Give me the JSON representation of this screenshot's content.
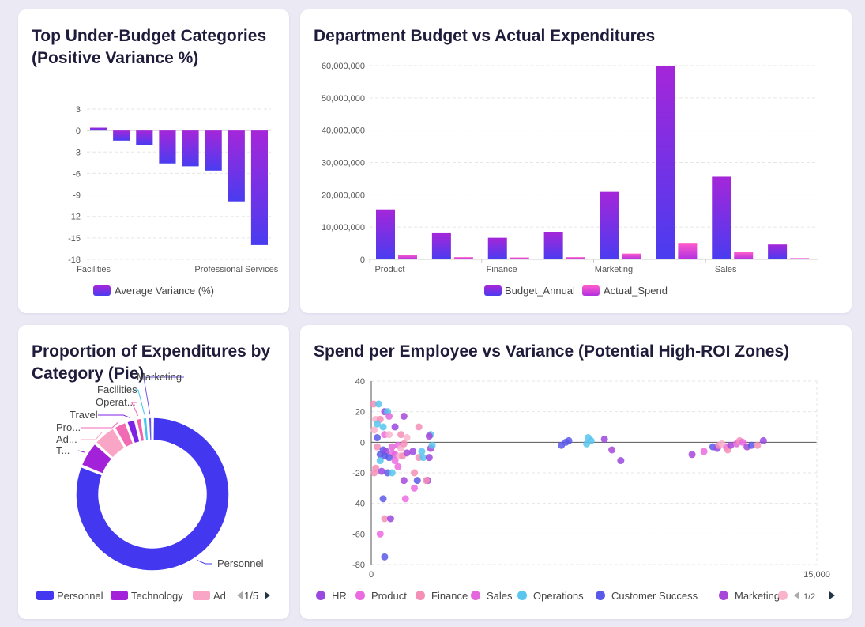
{
  "chart_data": [
    {
      "id": "variance",
      "type": "bar",
      "title": "Top Under-Budget Categories (Positive Variance %)",
      "categories": [
        "Facilities",
        "",
        "",
        "",
        "",
        "",
        "Professional Services",
        ""
      ],
      "series": [
        {
          "name": "Average Variance (%)",
          "values": [
            0.4,
            -1.4,
            -2.0,
            -4.6,
            -5.0,
            -5.6,
            -9.9,
            -16.0
          ]
        }
      ],
      "ylim": [
        -18,
        3
      ],
      "yticks": [
        3,
        0,
        -3,
        -6,
        -9,
        -12,
        -15,
        -18
      ],
      "grid": true,
      "legend": "bottom",
      "colors": {
        "top": "#a526d9",
        "bottom": "#4a3cf0"
      }
    },
    {
      "id": "budget",
      "type": "bar",
      "title": "Department Budget vs Actual Expenditures",
      "categories": [
        "Product",
        "",
        "Finance",
        "",
        "Marketing",
        "",
        "Sales",
        ""
      ],
      "series": [
        {
          "name": "Budget_Annual",
          "values": [
            15500000,
            8100000,
            6700000,
            8400000,
            20900000,
            59800000,
            25600000,
            4600000
          ]
        },
        {
          "name": "Actual_Spend",
          "values": [
            1400000,
            700000,
            600000,
            700000,
            1800000,
            5100000,
            2200000,
            400000
          ]
        }
      ],
      "ylim": [
        0,
        60000000
      ],
      "yticks": [
        "0",
        "10,000,000",
        "20,000,000",
        "30,000,000",
        "40,000,000",
        "50,000,000",
        "60,000,000"
      ],
      "grid": true,
      "legend": "bottom",
      "colors": {
        "budget_top": "#a526d9",
        "budget_bottom": "#4a3cf0",
        "actual_top": "#ff5ccb",
        "actual_bottom": "#b030e0"
      }
    },
    {
      "id": "pie",
      "type": "pie",
      "title": "Proportion of Expenditures by Category (Pie)",
      "slices": [
        {
          "label": "Personnel",
          "value": 81,
          "color": "#4338ef"
        },
        {
          "label": "T...",
          "value": 5.6,
          "color": "#a321d8"
        },
        {
          "label": "Ad...",
          "value": 5.0,
          "color": "#f9a6c6"
        },
        {
          "label": "Pro...",
          "value": 2.8,
          "color": "#f06ab4"
        },
        {
          "label": "Travel",
          "value": 2.0,
          "color": "#7b22e6"
        },
        {
          "label": "Operat...",
          "value": 1.4,
          "color": "#f15fa9"
        },
        {
          "label": "Facilities",
          "value": 1.2,
          "color": "#44c6ea"
        },
        {
          "label": "Marketing",
          "value": 1.0,
          "color": "#6a5ae8"
        }
      ],
      "legend": {
        "items": [
          {
            "label": "Personnel",
            "color": "#4338ef"
          },
          {
            "label": "Technology",
            "color": "#a321d8"
          },
          {
            "label": "Ad",
            "color": "#f9a6c6"
          }
        ],
        "page": "1/5"
      }
    },
    {
      "id": "scatter",
      "type": "scatter",
      "title": "Spend per Employee vs Variance (Potential High-ROI Zones)",
      "xlim": [
        0,
        15000
      ],
      "xticks": [
        "0",
        "15,000"
      ],
      "ylim": [
        -80,
        40
      ],
      "yticks": [
        40,
        20,
        0,
        -20,
        -40,
        -60,
        -80
      ],
      "grid": true,
      "legend": {
        "items": [
          {
            "label": "HR",
            "color": "#9a48e0"
          },
          {
            "label": "Product",
            "color": "#ec6ae0"
          },
          {
            "label": "Finance",
            "color": "#f48fb6"
          },
          {
            "label": "Sales",
            "color": "#e466dc"
          },
          {
            "label": "Operations",
            "color": "#58c6ee"
          },
          {
            "label": "Customer Success",
            "color": "#5a58e8"
          },
          {
            "label": "Marketing",
            "color": "#a846d8"
          },
          {
            "label": "",
            "color": "#f9b4cc"
          }
        ],
        "page": "1/2"
      },
      "points": [
        [
          80,
          25,
          2
        ],
        [
          250,
          25,
          4
        ],
        [
          450,
          20,
          0
        ],
        [
          550,
          20,
          4
        ],
        [
          600,
          17,
          3
        ],
        [
          1100,
          17,
          6
        ],
        [
          150,
          15,
          7
        ],
        [
          300,
          15,
          2
        ],
        [
          200,
          12,
          4
        ],
        [
          100,
          8,
          7
        ],
        [
          400,
          10,
          4
        ],
        [
          800,
          10,
          0
        ],
        [
          1600,
          10,
          2
        ],
        [
          450,
          5,
          1
        ],
        [
          600,
          5,
          7
        ],
        [
          1000,
          5,
          2
        ],
        [
          1200,
          3,
          7
        ],
        [
          200,
          3,
          5
        ],
        [
          2000,
          5,
          4
        ],
        [
          1950,
          4,
          6
        ],
        [
          700,
          -3,
          3
        ],
        [
          900,
          -2,
          1
        ],
        [
          1000,
          -4,
          7
        ],
        [
          1100,
          -1,
          2
        ],
        [
          200,
          -3,
          2
        ],
        [
          400,
          -5,
          5
        ],
        [
          500,
          -6,
          0
        ],
        [
          700,
          -7,
          1
        ],
        [
          800,
          -8,
          3
        ],
        [
          950,
          -9,
          7
        ],
        [
          1050,
          -9,
          2
        ],
        [
          1200,
          -7,
          6
        ],
        [
          300,
          -8,
          5
        ],
        [
          450,
          -9,
          5
        ],
        [
          600,
          -10,
          5
        ],
        [
          1400,
          -6,
          0
        ],
        [
          1600,
          -10,
          2
        ],
        [
          1700,
          -6,
          4
        ],
        [
          1750,
          -10,
          4
        ],
        [
          1950,
          -10,
          0
        ],
        [
          2000,
          -4,
          6
        ],
        [
          2050,
          -2,
          4
        ],
        [
          300,
          -12,
          4
        ],
        [
          800,
          -12,
          1
        ],
        [
          150,
          -17,
          2
        ],
        [
          350,
          -19,
          0
        ],
        [
          550,
          -20,
          5
        ],
        [
          100,
          -20,
          2
        ],
        [
          700,
          -20,
          4
        ],
        [
          900,
          -16,
          1
        ],
        [
          1450,
          -20,
          2
        ],
        [
          1100,
          -25,
          6
        ],
        [
          1550,
          -25,
          5
        ],
        [
          1900,
          -25,
          0
        ],
        [
          1850,
          -25,
          2
        ],
        [
          1450,
          -30,
          1
        ],
        [
          1150,
          -37,
          1
        ],
        [
          400,
          -37,
          5
        ],
        [
          450,
          -50,
          2
        ],
        [
          650,
          -50,
          0
        ],
        [
          300,
          -60,
          1
        ],
        [
          450,
          -75,
          5
        ],
        [
          6400,
          -2,
          5
        ],
        [
          6550,
          0,
          5
        ],
        [
          6650,
          1,
          5
        ],
        [
          7300,
          3,
          4
        ],
        [
          7400,
          1,
          4
        ],
        [
          7250,
          -1,
          4
        ],
        [
          7850,
          2,
          0
        ],
        [
          8100,
          -5,
          6
        ],
        [
          8400,
          -12,
          0
        ],
        [
          10800,
          -8,
          6
        ],
        [
          11200,
          -6,
          1
        ],
        [
          11500,
          -3,
          5
        ],
        [
          11650,
          -4,
          0
        ],
        [
          11700,
          -2,
          2
        ],
        [
          11950,
          -3,
          1
        ],
        [
          12000,
          -5,
          2
        ],
        [
          12100,
          -2,
          6
        ],
        [
          12300,
          -1,
          3
        ],
        [
          12400,
          1,
          2
        ],
        [
          12500,
          0,
          1
        ],
        [
          12650,
          -3,
          6
        ],
        [
          12800,
          -2,
          5
        ],
        [
          13000,
          -2,
          2
        ],
        [
          13200,
          1,
          0
        ],
        [
          11800,
          -1,
          7
        ]
      ]
    }
  ]
}
